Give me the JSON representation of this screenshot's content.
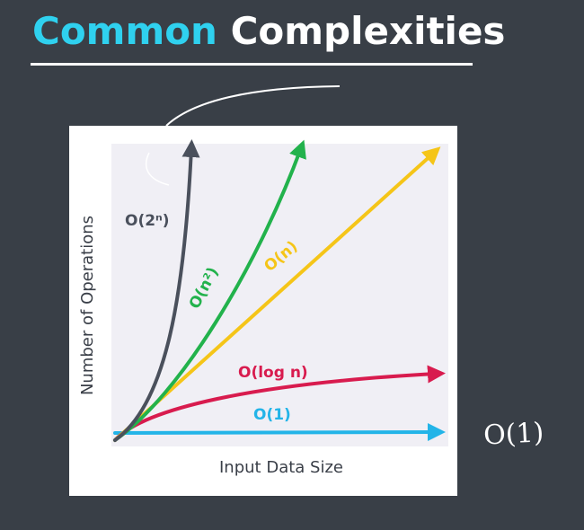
{
  "title": {
    "accent": "Common",
    "main": "Complexities"
  },
  "chart": {
    "ylabel": "Number of Operations",
    "xlabel": "Input Data Size",
    "curves": [
      {
        "id": "exponential",
        "label": "O(2ⁿ)",
        "color": "#4a505c"
      },
      {
        "id": "quadratic",
        "label": "O(n²)",
        "color": "#22b24c"
      },
      {
        "id": "linear",
        "label": "O(n)",
        "color": "#f5c518"
      },
      {
        "id": "logarithmic",
        "label": "O(log n)",
        "color": "#d81b4e"
      },
      {
        "id": "constant",
        "label": "O(1)",
        "color": "#23b4e8"
      }
    ]
  },
  "annotations": {
    "handwritten_note": "O(1)",
    "ink_color": "#ffffff"
  }
}
